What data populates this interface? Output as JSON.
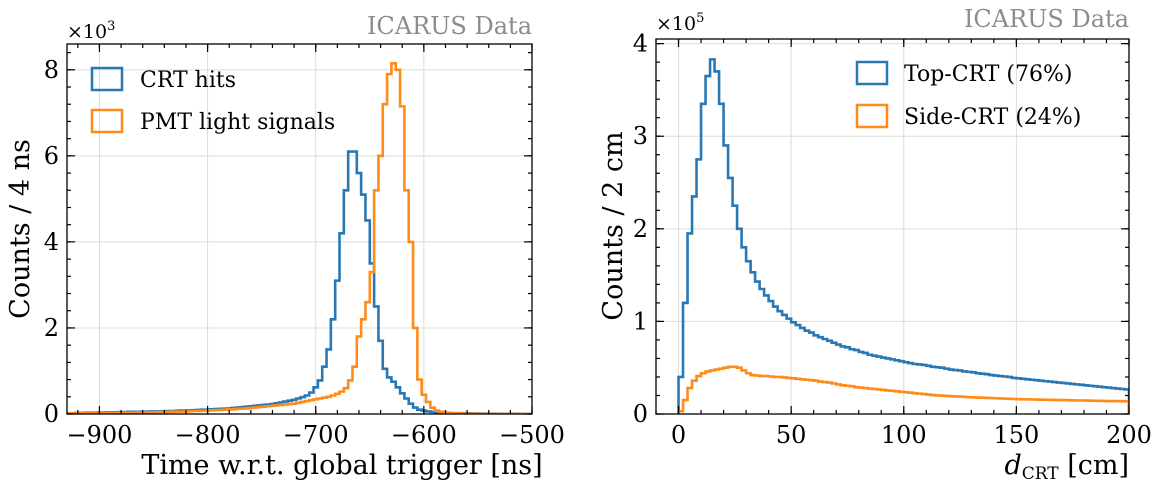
{
  "chart_data": [
    {
      "type": "line",
      "subtype": "step-histogram",
      "watermark": "ICARUS Data",
      "xlabel": "Time w.r.t. global trigger [ns]",
      "ylabel": "Counts / 4 ns",
      "y_multiplier": "×10",
      "y_multiplier_exp": "3",
      "xlim": [
        -930,
        -500
      ],
      "ylim": [
        0,
        8600
      ],
      "xticks": [
        -900,
        -800,
        -700,
        -600,
        -500
      ],
      "xtick_labels": [
        "−900",
        "−800",
        "−700",
        "−600",
        "−500"
      ],
      "yticks": [
        0,
        2000,
        4000,
        6000,
        8000
      ],
      "ytick_labels": [
        "0",
        "2",
        "4",
        "6",
        "8"
      ],
      "grid": true,
      "legend_position": "top-left",
      "bin_width": 4,
      "series": [
        {
          "name": "CRT hits",
          "color": "#2878b5",
          "x_start": -930,
          "values": [
            20,
            20,
            25,
            25,
            30,
            30,
            30,
            35,
            35,
            40,
            40,
            40,
            45,
            45,
            50,
            50,
            50,
            55,
            55,
            60,
            60,
            60,
            65,
            70,
            70,
            75,
            80,
            80,
            85,
            90,
            95,
            100,
            100,
            110,
            115,
            120,
            125,
            130,
            140,
            150,
            160,
            170,
            180,
            190,
            200,
            210,
            220,
            230,
            250,
            270,
            290,
            310,
            330,
            360,
            390,
            430,
            500,
            620,
            780,
            1100,
            1500,
            2200,
            3100,
            4200,
            5200,
            6100,
            6100,
            5600,
            5100,
            4500,
            3500,
            2500,
            1700,
            1050,
            850,
            750,
            620,
            480,
            360,
            240,
            150,
            100,
            80,
            60,
            50,
            40,
            35,
            30,
            25,
            20,
            20,
            18,
            16,
            14,
            12,
            10,
            10,
            8,
            8,
            6,
            6,
            5,
            5,
            4,
            4,
            3,
            3,
            2
          ]
        },
        {
          "name": "PMT light signals",
          "color": "#ff8c1a",
          "x_start": -930,
          "values": [
            15,
            15,
            15,
            15,
            20,
            20,
            20,
            20,
            20,
            25,
            25,
            25,
            30,
            30,
            30,
            30,
            35,
            35,
            35,
            40,
            40,
            45,
            45,
            50,
            50,
            55,
            55,
            60,
            65,
            70,
            70,
            75,
            80,
            85,
            90,
            95,
            100,
            105,
            110,
            120,
            125,
            130,
            140,
            150,
            160,
            170,
            180,
            190,
            200,
            210,
            220,
            230,
            240,
            260,
            280,
            300,
            320,
            340,
            360,
            380,
            400,
            430,
            470,
            520,
            600,
            780,
            1100,
            1800,
            2200,
            2600,
            3300,
            5200,
            6000,
            7200,
            7900,
            8150,
            8000,
            7150,
            5200,
            4000,
            2000,
            800,
            450,
            280,
            150,
            80,
            50,
            35,
            25,
            20,
            15,
            12,
            10,
            8,
            6,
            5,
            4,
            3,
            2,
            2,
            1,
            1,
            1,
            1,
            1,
            1,
            1,
            1
          ]
        }
      ]
    },
    {
      "type": "line",
      "subtype": "step-histogram",
      "watermark": "ICARUS Data",
      "xlabel": "d",
      "xlabel_sub": "CRT",
      "xlabel_unit": " [cm]",
      "ylabel": "Counts / 2 cm",
      "y_multiplier": "×10",
      "y_multiplier_exp": "5",
      "xlim": [
        -10,
        200
      ],
      "ylim": [
        0,
        405000
      ],
      "xticks": [
        0,
        50,
        100,
        150,
        200
      ],
      "xtick_labels": [
        "0",
        "50",
        "100",
        "150",
        "200"
      ],
      "yticks": [
        0,
        100000,
        200000,
        300000,
        400000
      ],
      "ytick_labels": [
        "0",
        "1",
        "2",
        "3",
        "4"
      ],
      "grid": true,
      "legend_position": "top-right",
      "bin_width": 2,
      "series": [
        {
          "name": "Top-CRT (76%)",
          "color": "#2878b5",
          "x_start": 0,
          "values": [
            40000,
            120000,
            195000,
            235000,
            275000,
            335000,
            365000,
            383000,
            370000,
            335000,
            290000,
            255000,
            225000,
            200000,
            180000,
            165000,
            153000,
            143000,
            135000,
            128000,
            122000,
            116000,
            111000,
            107000,
            103000,
            99000,
            96000,
            93000,
            90000,
            88000,
            85000,
            83000,
            81000,
            79000,
            77000,
            75000,
            73000,
            72000,
            70000,
            69000,
            67000,
            66000,
            64000,
            63000,
            62000,
            61000,
            60000,
            59000,
            58000,
            57000,
            56000,
            55000,
            54000,
            53500,
            53000,
            52000,
            51000,
            50500,
            50000,
            49000,
            48000,
            47500,
            47000,
            46000,
            45500,
            45000,
            44000,
            43500,
            43000,
            42000,
            41500,
            41000,
            40500,
            40000,
            39000,
            38500,
            38000,
            37500,
            37000,
            36500,
            36000,
            35500,
            35000,
            34500,
            34000,
            33500,
            33000,
            32500,
            32000,
            31500,
            31000,
            30500,
            30000,
            29500,
            29000,
            28500,
            28000,
            27500,
            27000,
            26500
          ]
        },
        {
          "name": "Side-CRT (24%)",
          "color": "#ff8c1a",
          "x_start": 0,
          "values": [
            3000,
            15000,
            28000,
            36000,
            41000,
            44000,
            46000,
            47000,
            48000,
            49000,
            50000,
            51000,
            51000,
            50000,
            47000,
            44000,
            42000,
            41500,
            41000,
            41000,
            40500,
            40000,
            40000,
            39500,
            39000,
            38500,
            38000,
            37500,
            37000,
            36500,
            36000,
            35000,
            34500,
            34000,
            33000,
            32000,
            31000,
            30500,
            30000,
            29000,
            28500,
            28000,
            27500,
            27000,
            26500,
            26000,
            25500,
            25000,
            24500,
            24000,
            23500,
            23000,
            22500,
            22000,
            21500,
            21000,
            20500,
            20000,
            19800,
            19500,
            19200,
            19000,
            18800,
            18500,
            18200,
            18000,
            17800,
            17600,
            17400,
            17200,
            17000,
            16800,
            16600,
            16400,
            16200,
            16000,
            15900,
            15800,
            15700,
            15600,
            15500,
            15400,
            15300,
            15200,
            15100,
            15000,
            14900,
            14800,
            14700,
            14600,
            14500,
            14400,
            14300,
            14200,
            14100,
            14000,
            14000,
            13900,
            13800,
            13700
          ]
        }
      ]
    }
  ]
}
